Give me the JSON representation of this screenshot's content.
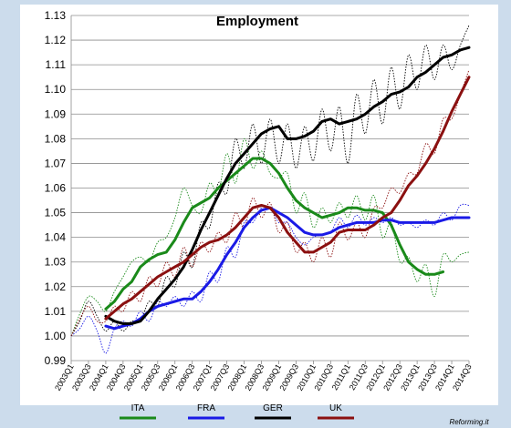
{
  "chart_data": {
    "type": "line",
    "title": "Employment",
    "credit": "Reforming.it",
    "ylim": [
      0.99,
      1.13
    ],
    "yticks": [
      "0.99",
      "1.00",
      "1.01",
      "1.02",
      "1.03",
      "1.04",
      "1.05",
      "1.06",
      "1.07",
      "1.08",
      "1.09",
      "1.10",
      "1.11",
      "1.12",
      "1.13"
    ],
    "grid": "horizontal",
    "legend": "bottom",
    "categories": [
      "2003Q1",
      "2003Q2",
      "2003Q3",
      "2003Q4",
      "2004Q1",
      "2004Q2",
      "2004Q3",
      "2004Q4",
      "2005Q1",
      "2005Q2",
      "2005Q3",
      "2005Q4",
      "2006Q1",
      "2006Q2",
      "2006Q3",
      "2006Q4",
      "2007Q1",
      "2007Q2",
      "2007Q3",
      "2007Q4",
      "2008Q1",
      "2008Q2",
      "2008Q3",
      "2008Q4",
      "2009Q1",
      "2009Q2",
      "2009Q3",
      "2009Q4",
      "2010Q1",
      "2010Q2",
      "2010Q3",
      "2010Q4",
      "2011Q1",
      "2011Q2",
      "2011Q3",
      "2011Q4",
      "2012Q1",
      "2012Q2",
      "2012Q3",
      "2012Q4",
      "2013Q1",
      "2013Q2",
      "2013Q3",
      "2013Q4",
      "2014Q1",
      "2014Q2",
      "2014Q3"
    ],
    "xtick_labels": [
      "2003Q1",
      "2003Q3",
      "2004Q1",
      "2004Q3",
      "2005Q1",
      "2005Q3",
      "2006Q1",
      "2006Q3",
      "2007Q1",
      "2007Q3",
      "2008Q1",
      "2008Q3",
      "2009Q1",
      "2009Q3",
      "2010Q1",
      "2010Q3",
      "2011Q1",
      "2011Q3",
      "2012Q1",
      "2012Q3",
      "2013Q1",
      "2013Q3",
      "2014Q1",
      "2014Q3"
    ],
    "series": [
      {
        "name": "ITA",
        "color": "#1a8a1a",
        "values": [
          null,
          null,
          null,
          null,
          1.011,
          1.014,
          1.019,
          1.022,
          1.028,
          1.031,
          1.033,
          1.034,
          1.039,
          1.046,
          1.052,
          1.054,
          1.056,
          1.06,
          1.063,
          1.066,
          1.069,
          1.072,
          1.072,
          1.07,
          1.066,
          1.06,
          1.055,
          1.052,
          1.05,
          1.048,
          1.049,
          1.05,
          1.052,
          1.052,
          1.051,
          1.051,
          1.05,
          1.045,
          1.037,
          1.03,
          1.027,
          1.025,
          1.025,
          1.026,
          null,
          null,
          null
        ],
        "raw": [
          1.0,
          1.009,
          1.016,
          1.014,
          1.01,
          1.018,
          1.024,
          1.03,
          1.032,
          1.03,
          1.038,
          1.04,
          1.048,
          1.06,
          1.053,
          1.05,
          1.062,
          1.058,
          1.074,
          1.062,
          1.08,
          1.068,
          1.075,
          1.066,
          1.064,
          1.066,
          1.05,
          1.058,
          1.044,
          1.052,
          1.046,
          1.054,
          1.048,
          1.057,
          1.047,
          1.057,
          1.04,
          1.046,
          1.03,
          1.032,
          1.022,
          1.029,
          1.016,
          1.033,
          1.03,
          1.033,
          1.034
        ]
      },
      {
        "name": "FRA",
        "color": "#1a1ae6",
        "values": [
          null,
          null,
          null,
          null,
          1.004,
          1.003,
          1.004,
          1.005,
          1.007,
          1.01,
          1.012,
          1.013,
          1.014,
          1.015,
          1.015,
          1.018,
          1.022,
          1.027,
          1.033,
          1.038,
          1.044,
          1.048,
          1.051,
          1.052,
          1.05,
          1.048,
          1.045,
          1.042,
          1.041,
          1.041,
          1.042,
          1.044,
          1.045,
          1.046,
          1.046,
          1.046,
          1.047,
          1.047,
          1.046,
          1.046,
          1.046,
          1.046,
          1.046,
          1.047,
          1.048,
          1.048,
          1.048
        ],
        "raw": [
          1.0,
          1.003,
          1.008,
          1.002,
          0.993,
          1.003,
          1.006,
          1.004,
          1.01,
          1.006,
          1.014,
          1.012,
          1.016,
          1.012,
          1.018,
          1.014,
          1.026,
          1.022,
          1.036,
          1.032,
          1.046,
          1.046,
          1.052,
          1.052,
          1.046,
          1.046,
          1.04,
          1.037,
          1.04,
          1.041,
          1.042,
          1.048,
          1.044,
          1.049,
          1.045,
          1.048,
          1.046,
          1.048,
          1.045,
          1.046,
          1.044,
          1.047,
          1.045,
          1.05,
          1.047,
          1.053,
          1.053
        ]
      },
      {
        "name": "GER",
        "color": "#000000",
        "values": [
          null,
          null,
          null,
          null,
          1.008,
          1.006,
          1.005,
          1.005,
          1.006,
          1.01,
          1.015,
          1.019,
          1.023,
          1.028,
          1.035,
          1.043,
          1.05,
          1.057,
          1.064,
          1.07,
          1.074,
          1.078,
          1.082,
          1.084,
          1.085,
          1.08,
          1.08,
          1.081,
          1.083,
          1.087,
          1.088,
          1.086,
          1.087,
          1.088,
          1.09,
          1.093,
          1.095,
          1.098,
          1.099,
          1.101,
          1.105,
          1.107,
          1.11,
          1.113,
          1.114,
          1.116,
          1.117
        ],
        "raw": [
          1.0,
          1.006,
          1.014,
          1.008,
          1.002,
          1.006,
          1.002,
          1.006,
          1.006,
          1.014,
          1.012,
          1.024,
          1.02,
          1.034,
          1.028,
          1.046,
          1.044,
          1.062,
          1.058,
          1.08,
          1.068,
          1.086,
          1.07,
          1.088,
          1.07,
          1.086,
          1.068,
          1.085,
          1.071,
          1.092,
          1.075,
          1.093,
          1.07,
          1.098,
          1.082,
          1.104,
          1.086,
          1.109,
          1.092,
          1.114,
          1.1,
          1.118,
          1.104,
          1.118,
          1.108,
          1.118,
          1.126
        ]
      },
      {
        "name": "UK",
        "color": "#8b1010",
        "values": [
          null,
          null,
          null,
          null,
          1.007,
          1.01,
          1.013,
          1.015,
          1.018,
          1.021,
          1.024,
          1.026,
          1.028,
          1.03,
          1.033,
          1.036,
          1.038,
          1.039,
          1.041,
          1.044,
          1.048,
          1.052,
          1.053,
          1.052,
          1.048,
          1.042,
          1.038,
          1.034,
          1.034,
          1.036,
          1.038,
          1.042,
          1.043,
          1.043,
          1.043,
          1.045,
          1.048,
          1.05,
          1.055,
          1.061,
          1.065,
          1.07,
          1.076,
          1.083,
          1.091,
          1.098,
          1.105
        ],
        "raw": [
          1.0,
          1.007,
          1.012,
          1.006,
          1.006,
          1.012,
          1.01,
          1.018,
          1.014,
          1.024,
          1.02,
          1.03,
          1.024,
          1.036,
          1.028,
          1.038,
          1.034,
          1.042,
          1.038,
          1.05,
          1.044,
          1.056,
          1.048,
          1.054,
          1.042,
          1.046,
          1.034,
          1.038,
          1.03,
          1.04,
          1.032,
          1.046,
          1.039,
          1.046,
          1.04,
          1.052,
          1.052,
          1.06,
          1.058,
          1.066,
          1.066,
          1.078,
          1.074,
          1.088,
          1.088,
          1.098,
          1.108
        ]
      }
    ]
  }
}
